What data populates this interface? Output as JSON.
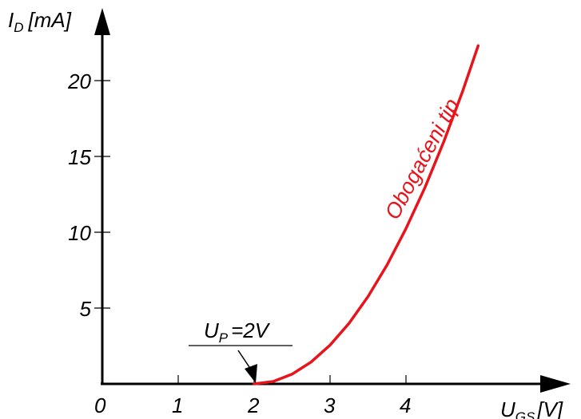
{
  "chart_data": {
    "type": "line",
    "y_axis": {
      "symbol": "I",
      "subscript": "D",
      "unit": "[mA]"
    },
    "x_axis": {
      "symbol": "U",
      "subscript": "GS",
      "unit": "[V]"
    },
    "origin_label": "0",
    "xlim": [
      0,
      5.8
    ],
    "ylim": [
      0,
      24
    ],
    "x_ticks": [
      {
        "value": 1,
        "label": "1"
      },
      {
        "value": 2,
        "label": "2"
      },
      {
        "value": 3,
        "label": "3"
      },
      {
        "value": 4,
        "label": "4"
      }
    ],
    "y_ticks": [
      {
        "value": 5,
        "label": "5"
      },
      {
        "value": 10,
        "label": "10"
      },
      {
        "value": 15,
        "label": "15"
      },
      {
        "value": 20,
        "label": "20"
      }
    ],
    "series": [
      {
        "name": "Obogaćeni tip",
        "color": "#e8141b",
        "x": [
          2.0,
          2.25,
          2.5,
          2.75,
          3.0,
          3.25,
          3.5,
          3.75,
          4.0,
          4.25,
          4.5,
          4.75,
          4.95
        ],
        "y": [
          0.0,
          0.16,
          0.64,
          1.44,
          2.56,
          4.0,
          5.76,
          7.84,
          10.24,
          12.96,
          16.0,
          19.36,
          22.3
        ]
      }
    ],
    "annotations": [
      {
        "symbol": "U",
        "subscript": "P",
        "value_text": "=2V",
        "x": 2,
        "y": 0,
        "color": "#e8141b"
      }
    ]
  }
}
